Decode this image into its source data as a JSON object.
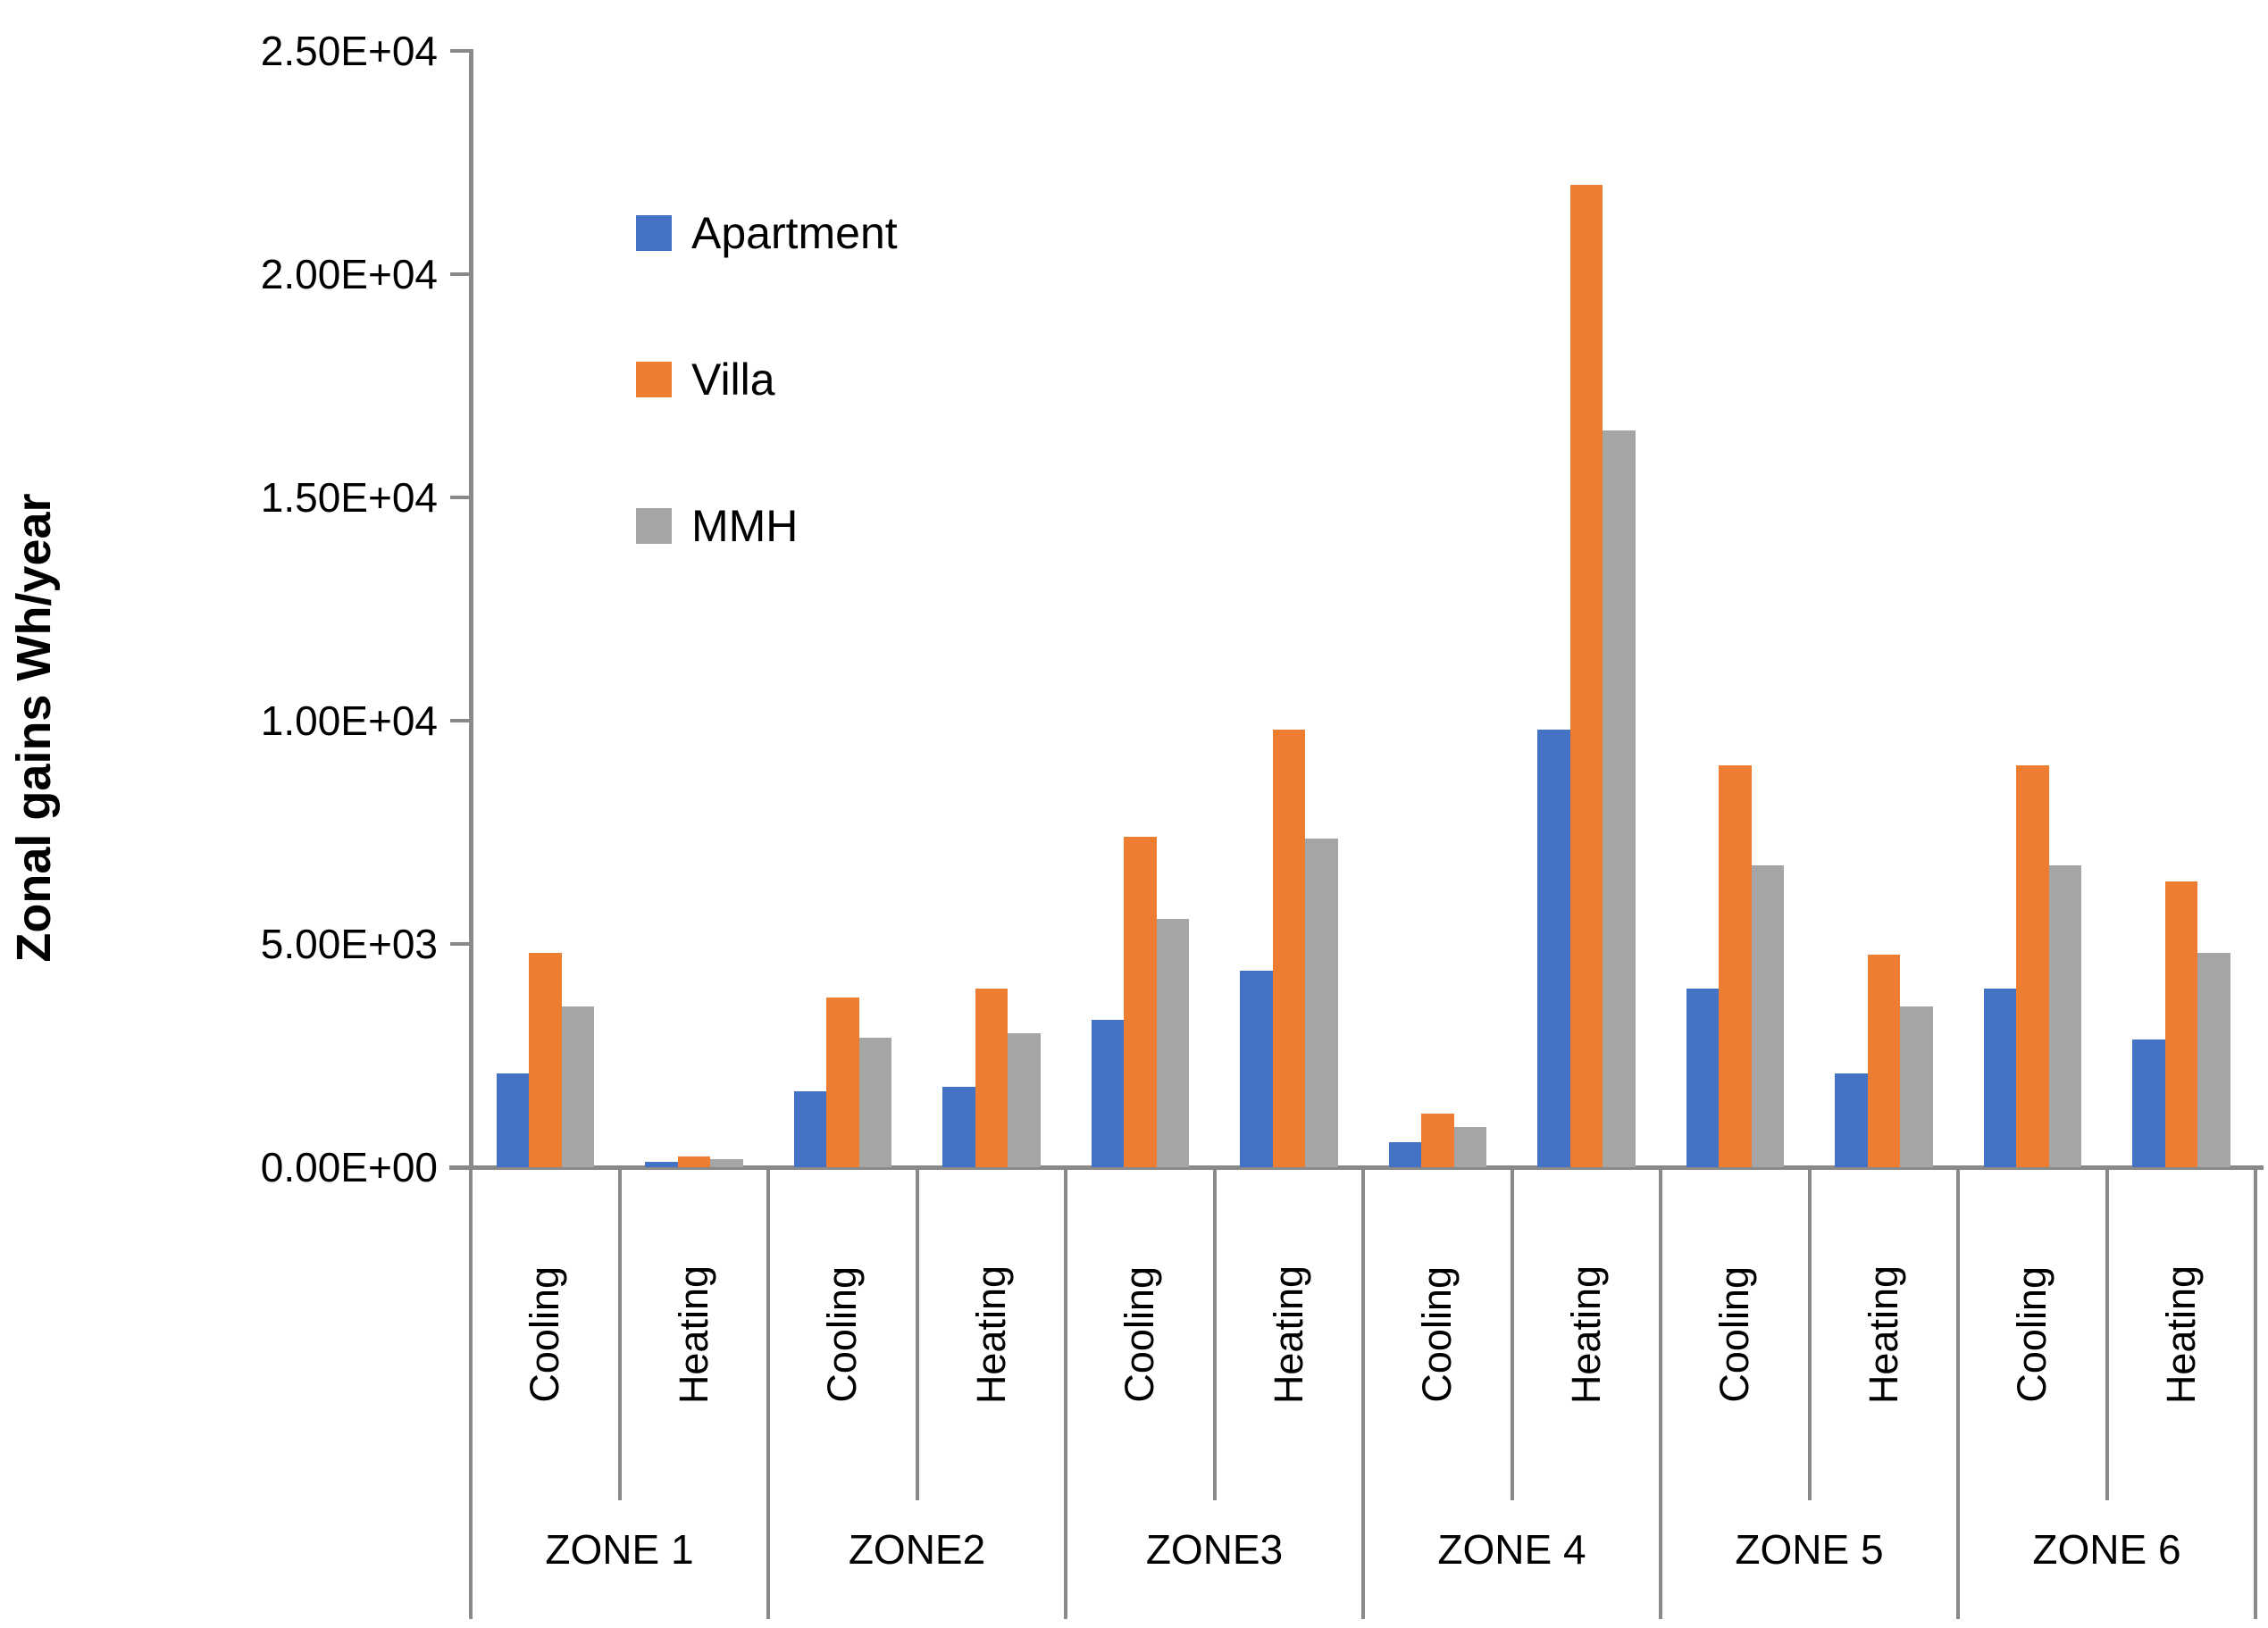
{
  "chart_data": {
    "type": "bar",
    "title": "",
    "xlabel": "",
    "ylabel": "Zonal gains Wh/year",
    "ylim": [
      0,
      25000
    ],
    "y_tick_step": 5000,
    "y_ticks": [
      "0.00E+00",
      "5.00E+03",
      "1.00E+04",
      "1.50E+04",
      "2.00E+04",
      "2.50E+04"
    ],
    "grid": false,
    "legend_position": "upper-left-inside",
    "axis_color": "#898989",
    "text_color": "#000000",
    "legend": [
      {
        "label": "Apartment",
        "color": "#4472C4"
      },
      {
        "label": "Villa",
        "color": "#ED7D31"
      },
      {
        "label": "MMH",
        "color": "#A5A5A5"
      }
    ],
    "zones": [
      {
        "label": "ZONE 1",
        "groups": [
          {
            "label": "Cooling",
            "values": [
              2100,
              4800,
              3600
            ]
          },
          {
            "label": "Heating",
            "values": [
              120,
              240,
              180
            ]
          }
        ]
      },
      {
        "label": "ZONE2",
        "groups": [
          {
            "label": "Cooling",
            "values": [
              1700,
              3800,
              2900
            ]
          },
          {
            "label": "Heating",
            "values": [
              1800,
              4000,
              3000
            ]
          }
        ]
      },
      {
        "label": "ZONE3",
        "groups": [
          {
            "label": "Cooling",
            "values": [
              3300,
              7400,
              5550
            ]
          },
          {
            "label": "Heating",
            "values": [
              4400,
              9800,
              7350
            ]
          }
        ]
      },
      {
        "label": "ZONE 4",
        "groups": [
          {
            "label": "Cooling",
            "values": [
              550,
              1200,
              900
            ]
          },
          {
            "label": "Heating",
            "values": [
              9800,
              22000,
              16500
            ]
          }
        ]
      },
      {
        "label": "ZONE 5",
        "groups": [
          {
            "label": "Cooling",
            "values": [
              4000,
              9000,
              6750
            ]
          },
          {
            "label": "Heating",
            "values": [
              2100,
              4750,
              3600
            ]
          }
        ]
      },
      {
        "label": "ZONE 6",
        "groups": [
          {
            "label": "Cooling",
            "values": [
              4000,
              9000,
              6750
            ]
          },
          {
            "label": "Heating",
            "values": [
              2850,
              6400,
              4800
            ]
          }
        ]
      }
    ]
  }
}
